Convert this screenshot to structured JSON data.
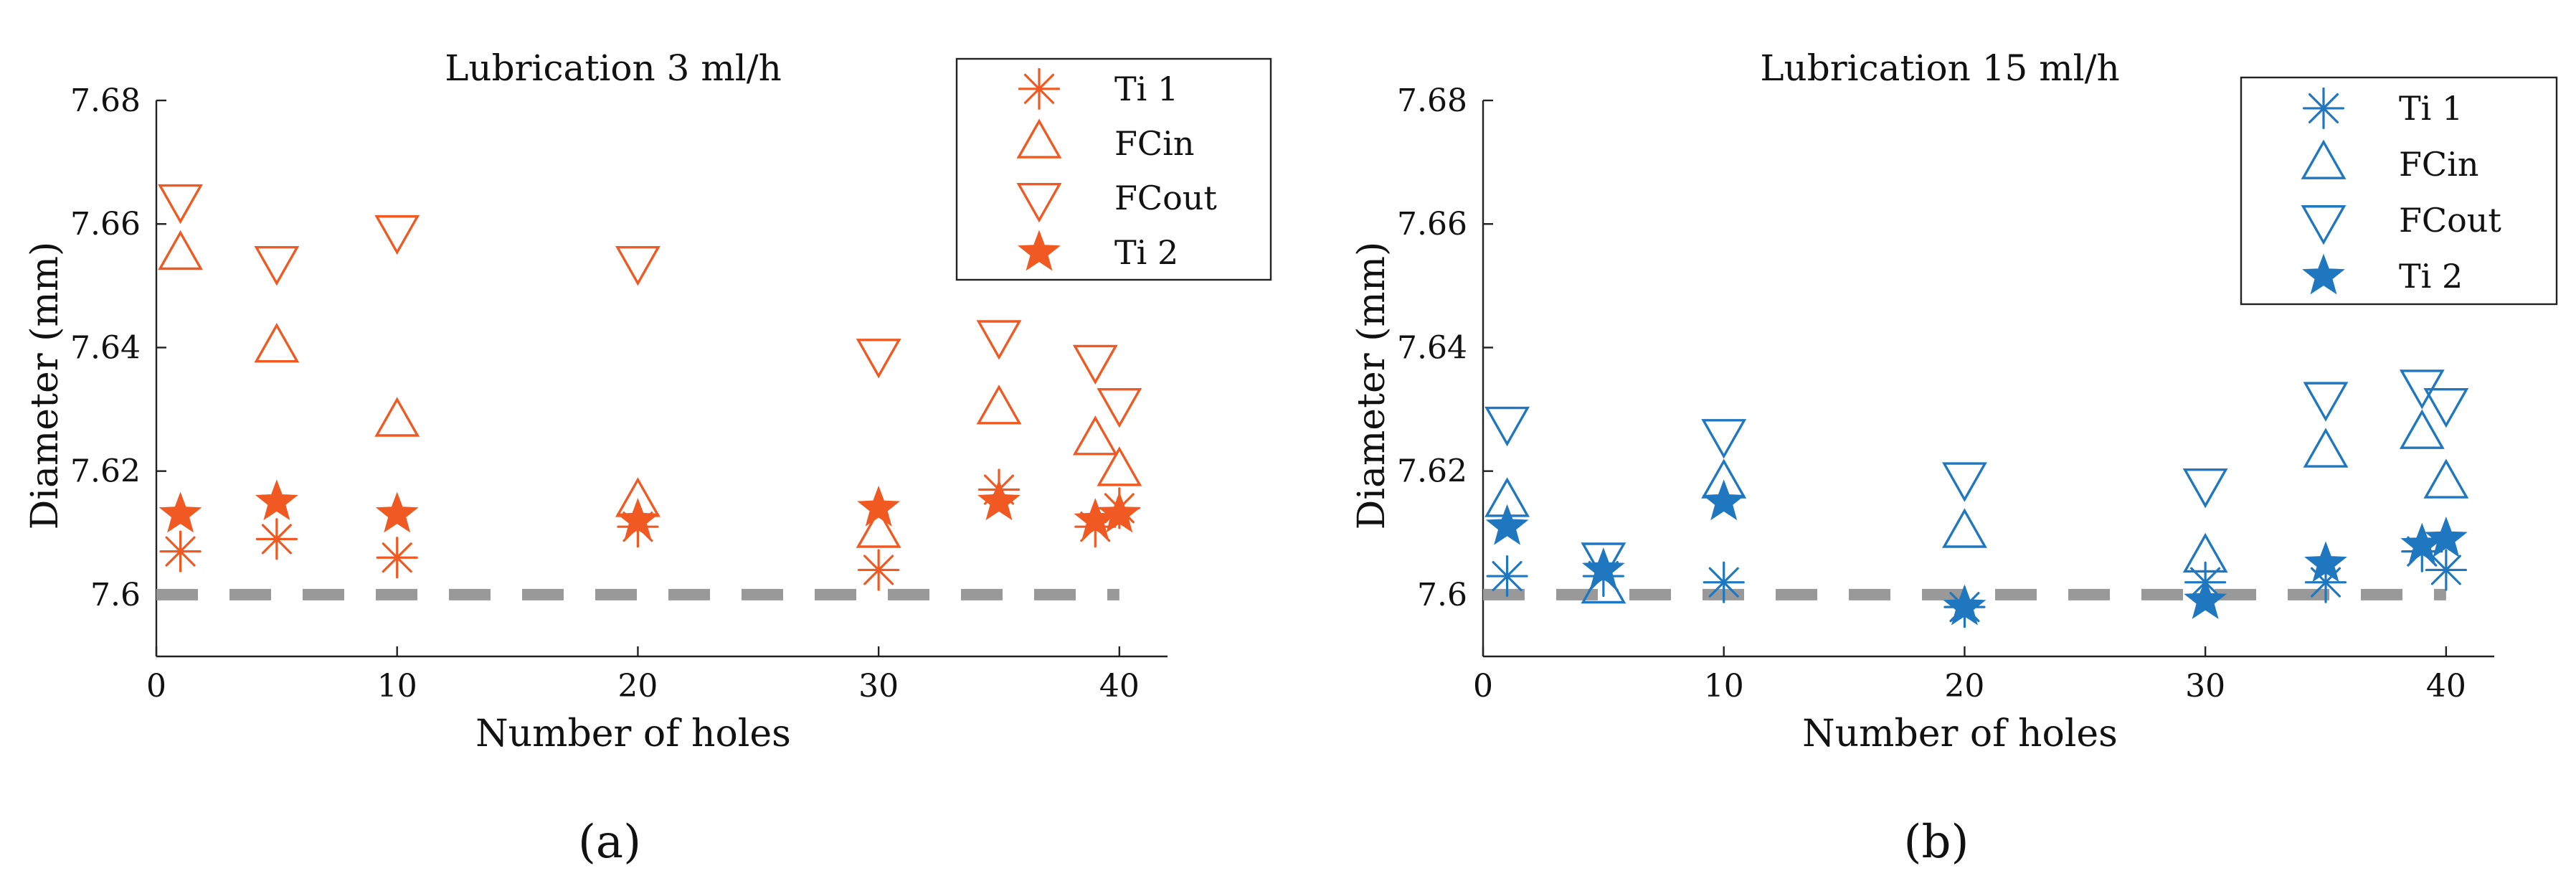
{
  "chart_data": [
    {
      "type": "scatter",
      "title": "Lubrication 3 ml/h",
      "xlabel": "Number of holes",
      "ylabel": "Diameter (mm)",
      "caption": "(a)",
      "xlim": [
        0,
        42
      ],
      "ylim": [
        7.59,
        7.68
      ],
      "xticks": [
        "0",
        "10",
        "20",
        "30",
        "40"
      ],
      "yticks": [
        "7.6",
        "7.62",
        "7.64",
        "7.66",
        "7.68"
      ],
      "color": "#f05a22",
      "legend_position": "top-right",
      "reference_line": {
        "y": 7.6,
        "color": "#999999",
        "style": "dashed"
      },
      "series": [
        {
          "name": "Ti 1",
          "marker": "asterisk",
          "x": [
            1,
            5,
            10,
            20,
            30,
            35,
            39,
            40
          ],
          "y": [
            7.607,
            7.609,
            7.606,
            7.611,
            7.604,
            7.617,
            7.611,
            7.614
          ]
        },
        {
          "name": "FCin",
          "marker": "triangle-up",
          "x": [
            1,
            5,
            10,
            20,
            30,
            35,
            39,
            40
          ],
          "y": [
            7.655,
            7.64,
            7.628,
            7.615,
            7.61,
            7.63,
            7.625,
            7.62
          ]
        },
        {
          "name": "FCout",
          "marker": "triangle-down",
          "x": [
            1,
            5,
            10,
            20,
            30,
            35,
            39,
            40
          ],
          "y": [
            7.664,
            7.654,
            7.659,
            7.654,
            7.639,
            7.642,
            7.638,
            7.631
          ]
        },
        {
          "name": "Ti 2",
          "marker": "star-filled",
          "x": [
            1,
            5,
            10,
            20,
            30,
            35,
            39,
            40
          ],
          "y": [
            7.613,
            7.615,
            7.613,
            7.612,
            7.614,
            7.615,
            7.612,
            7.613
          ]
        }
      ]
    },
    {
      "type": "scatter",
      "title": "Lubrication 15 ml/h",
      "xlabel": "Number of holes",
      "ylabel": "Diameter (mm)",
      "caption": "(b)",
      "xlim": [
        0,
        42
      ],
      "ylim": [
        7.59,
        7.68
      ],
      "xticks": [
        "0",
        "10",
        "20",
        "30",
        "40"
      ],
      "yticks": [
        "7.6",
        "7.62",
        "7.64",
        "7.66",
        "7.68"
      ],
      "color": "#1f77c0",
      "legend_position": "top-right",
      "reference_line": {
        "y": 7.6,
        "color": "#999999",
        "style": "dashed"
      },
      "series": [
        {
          "name": "Ti 1",
          "marker": "asterisk",
          "x": [
            1,
            5,
            10,
            20,
            30,
            35,
            39,
            40
          ],
          "y": [
            7.603,
            7.603,
            7.602,
            7.598,
            7.602,
            7.602,
            7.607,
            7.604
          ]
        },
        {
          "name": "FCin",
          "marker": "triangle-up",
          "x": [
            1,
            5,
            10,
            20,
            30,
            35,
            39,
            40
          ],
          "y": [
            7.615,
            7.601,
            7.618,
            7.61,
            7.606,
            7.623,
            7.626,
            7.618
          ]
        },
        {
          "name": "FCout",
          "marker": "triangle-down",
          "x": [
            1,
            5,
            10,
            20,
            30,
            35,
            39,
            40
          ],
          "y": [
            7.628,
            7.606,
            7.626,
            7.619,
            7.618,
            7.632,
            7.634,
            7.631
          ]
        },
        {
          "name": "Ti 2",
          "marker": "star-filled",
          "x": [
            1,
            5,
            10,
            20,
            30,
            35,
            39,
            40
          ],
          "y": [
            7.611,
            7.604,
            7.615,
            7.598,
            7.599,
            7.605,
            7.608,
            7.609
          ]
        }
      ]
    }
  ]
}
